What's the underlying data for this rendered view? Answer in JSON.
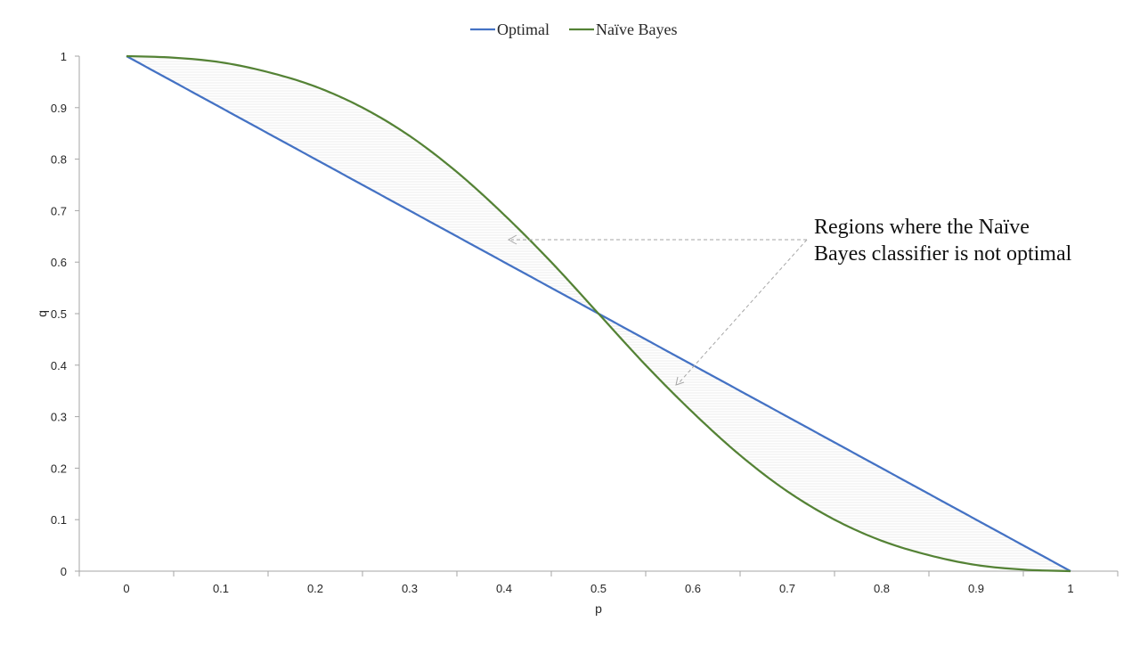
{
  "colors": {
    "optimal": "#4472C4",
    "naive_bayes": "#548235",
    "axis": "#A6A6A6",
    "hatch": "#D9D9D9",
    "arrow": "#A6A6A6"
  },
  "legend": {
    "position": "top-center",
    "items": [
      {
        "label": "Optimal",
        "color": "#4472C4"
      },
      {
        "label": "Naïve Bayes",
        "color": "#548235"
      }
    ]
  },
  "annotation": {
    "line1": "Regions where the Naïve",
    "line2": "Bayes classifier is not optimal"
  },
  "chart_data": {
    "type": "line",
    "xlabel": "p",
    "ylabel": "q",
    "xlim": [
      0,
      1
    ],
    "ylim": [
      0,
      1
    ],
    "grid": false,
    "x_ticks": [
      "0",
      "0.1",
      "0.2",
      "0.3",
      "0.4",
      "0.5",
      "0.6",
      "0.7",
      "0.8",
      "0.9",
      "1"
    ],
    "y_ticks": [
      "0",
      "0.1",
      "0.2",
      "0.3",
      "0.4",
      "0.5",
      "0.6",
      "0.7",
      "0.8",
      "0.9",
      "1"
    ],
    "x": [
      0,
      0.05,
      0.1,
      0.15,
      0.2,
      0.25,
      0.3,
      0.35,
      0.4,
      0.45,
      0.5,
      0.55,
      0.6,
      0.65,
      0.7,
      0.75,
      0.8,
      0.85,
      0.9,
      0.95,
      1
    ],
    "series": [
      {
        "name": "Optimal",
        "values": [
          1,
          0.95,
          0.9,
          0.85,
          0.8,
          0.75,
          0.7,
          0.65,
          0.6,
          0.55,
          0.5,
          0.45,
          0.4,
          0.35,
          0.3,
          0.25,
          0.2,
          0.15,
          0.1,
          0.05,
          0
        ]
      },
      {
        "name": "Naïve Bayes",
        "values": [
          1,
          0.997,
          0.988,
          0.969,
          0.941,
          0.9,
          0.845,
          0.775,
          0.692,
          0.6,
          0.5,
          0.4,
          0.308,
          0.225,
          0.155,
          0.1,
          0.059,
          0.031,
          0.012,
          0.003,
          0
        ]
      }
    ]
  }
}
